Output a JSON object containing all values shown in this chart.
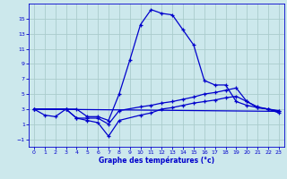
{
  "xlabel": "Graphe des températures (°c)",
  "bg_color": "#cce8ec",
  "grid_color": "#aacccc",
  "line_color": "#0000cc",
  "xlim": [
    -0.5,
    23.5
  ],
  "ylim": [
    -2.0,
    17.0
  ],
  "yticks": [
    -1,
    1,
    3,
    5,
    7,
    9,
    11,
    13,
    15
  ],
  "xticks": [
    0,
    1,
    2,
    3,
    4,
    5,
    6,
    7,
    8,
    9,
    10,
    11,
    12,
    13,
    14,
    15,
    16,
    17,
    18,
    19,
    20,
    21,
    22,
    23
  ],
  "curve1_x": [
    0,
    1,
    2,
    3,
    4,
    5,
    6,
    7,
    8,
    9,
    10,
    11,
    12,
    13,
    14,
    15,
    16,
    17,
    18,
    19,
    20,
    21,
    22,
    23
  ],
  "curve1_y": [
    3.0,
    2.2,
    2.0,
    3.0,
    3.0,
    2.0,
    2.0,
    1.5,
    5.0,
    9.5,
    14.2,
    16.2,
    15.7,
    15.5,
    13.5,
    11.5,
    6.8,
    6.2,
    6.2,
    4.0,
    3.5,
    3.2,
    3.0,
    2.5
  ],
  "curve2_x": [
    0,
    3,
    4,
    5,
    6,
    7,
    8,
    10,
    11,
    12,
    13,
    14,
    15,
    16,
    17,
    18,
    19,
    20,
    21,
    22,
    23
  ],
  "curve2_y": [
    3.0,
    3.0,
    1.8,
    1.8,
    1.8,
    1.0,
    2.8,
    3.3,
    3.5,
    3.8,
    4.0,
    4.3,
    4.6,
    5.0,
    5.2,
    5.5,
    5.8,
    4.0,
    3.3,
    3.0,
    2.8
  ],
  "curve3_x": [
    0,
    3,
    4,
    5,
    6,
    7,
    8,
    10,
    11,
    12,
    13,
    14,
    15,
    16,
    17,
    18,
    19,
    20,
    21,
    22,
    23
  ],
  "curve3_y": [
    3.0,
    3.0,
    1.8,
    1.5,
    1.2,
    -0.6,
    1.5,
    2.2,
    2.5,
    3.0,
    3.2,
    3.5,
    3.8,
    4.0,
    4.2,
    4.5,
    4.7,
    4.0,
    3.2,
    3.0,
    2.7
  ],
  "curve4_x": [
    0,
    23
  ],
  "curve4_y": [
    3.0,
    2.7
  ]
}
